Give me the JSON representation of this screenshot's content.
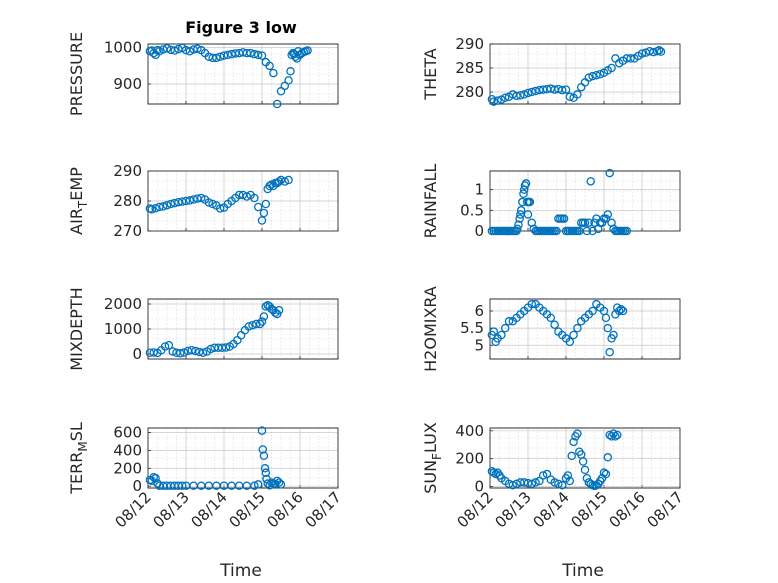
{
  "chart_data": [
    {
      "type": "scatter",
      "title": "Figure 3 low",
      "ylabel": "PRESSURE",
      "xlabel": "",
      "ylim": [
        845,
        1010
      ],
      "yticks": [
        900,
        1000
      ],
      "xlim": [
        0,
        5
      ],
      "xtick_labels": [
        "08/12",
        "08/13",
        "08/14",
        "08/15",
        "08/16",
        "08/17"
      ],
      "x": [
        0.05,
        0.1,
        0.15,
        0.2,
        0.25,
        0.3,
        0.4,
        0.5,
        0.6,
        0.7,
        0.8,
        0.9,
        1.0,
        1.1,
        1.2,
        1.3,
        1.4,
        1.5,
        1.6,
        1.7,
        1.8,
        1.9,
        2.0,
        2.1,
        2.2,
        2.3,
        2.4,
        2.5,
        2.6,
        2.7,
        2.8,
        2.9,
        3.0,
        3.1,
        3.2,
        3.3,
        3.4,
        3.5,
        3.6,
        3.7,
        3.75,
        3.78,
        3.82,
        3.85,
        3.88,
        3.92,
        3.95,
        4.0,
        4.05,
        4.1,
        4.15,
        4.2
      ],
      "y": [
        990,
        992,
        985,
        980,
        993,
        990,
        995,
        998,
        994,
        992,
        996,
        999,
        993,
        990,
        995,
        997,
        993,
        985,
        975,
        972,
        972,
        975,
        978,
        980,
        982,
        984,
        985,
        987,
        985,
        985,
        982,
        980,
        978,
        960,
        950,
        930,
        845,
        880,
        895,
        910,
        935,
        980,
        985,
        982,
        975,
        970,
        990,
        980,
        985,
        988,
        990,
        992
      ]
    },
    {
      "type": "scatter",
      "title": "",
      "ylabel": "THETA",
      "xlabel": "",
      "ylim": [
        277.5,
        290
      ],
      "yticks": [
        280,
        285,
        290
      ],
      "xlim": [
        0,
        5
      ],
      "xtick_labels": [
        "08/12",
        "08/13",
        "08/14",
        "08/15",
        "08/16",
        "08/17"
      ],
      "x": [
        0.05,
        0.1,
        0.2,
        0.3,
        0.4,
        0.5,
        0.6,
        0.7,
        0.8,
        0.9,
        1.0,
        1.1,
        1.2,
        1.3,
        1.4,
        1.5,
        1.6,
        1.7,
        1.8,
        1.9,
        2.0,
        2.1,
        2.2,
        2.3,
        2.4,
        2.5,
        2.6,
        2.7,
        2.8,
        2.9,
        3.0,
        3.1,
        3.2,
        3.3,
        3.4,
        3.5,
        3.6,
        3.7,
        3.8,
        3.9,
        4.0,
        4.1,
        4.2,
        4.3,
        4.4,
        4.45,
        4.5
      ],
      "y": [
        278.5,
        278,
        278.2,
        278.4,
        278.8,
        279,
        279.5,
        279.2,
        279.3,
        279.5,
        279.8,
        280,
        280.2,
        280.4,
        280.5,
        280.6,
        280.7,
        280.5,
        280.6,
        280.4,
        280.5,
        279,
        278.8,
        279.5,
        281,
        282,
        283,
        283.3,
        283.5,
        283.7,
        284,
        284.5,
        285,
        287,
        286,
        286.5,
        287,
        287,
        287,
        287.5,
        288,
        288.2,
        288.5,
        288.3,
        288.5,
        288.7,
        288.4
      ]
    },
    {
      "type": "scatter",
      "title": "",
      "ylabel": "AIR_TEMP",
      "xlabel": "",
      "ylim": [
        270,
        290
      ],
      "yticks": [
        270,
        280,
        290
      ],
      "xlim": [
        0,
        5
      ],
      "xtick_labels": [
        "08/12",
        "08/13",
        "08/14",
        "08/15",
        "08/16",
        "08/17"
      ],
      "x": [
        0.05,
        0.1,
        0.2,
        0.3,
        0.4,
        0.5,
        0.6,
        0.7,
        0.8,
        0.9,
        1.0,
        1.1,
        1.2,
        1.3,
        1.4,
        1.5,
        1.6,
        1.7,
        1.8,
        1.9,
        2.0,
        2.1,
        2.2,
        2.3,
        2.4,
        2.5,
        2.6,
        2.7,
        2.8,
        2.9,
        3.0,
        3.05,
        3.1,
        3.15,
        3.2,
        3.25,
        3.3,
        3.35,
        3.4,
        3.45,
        3.5,
        3.6,
        3.7
      ],
      "y": [
        277.5,
        277.2,
        277.6,
        278,
        278.2,
        278.6,
        279,
        279.3,
        279.6,
        279.8,
        280,
        280.2,
        280.5,
        280.8,
        281,
        280.5,
        279.5,
        279,
        278.5,
        277.5,
        277.8,
        279,
        280,
        281,
        282,
        282,
        281.5,
        282,
        281,
        278,
        273.5,
        276,
        279,
        284,
        285,
        285.5,
        285,
        286,
        286,
        286.5,
        287,
        286.5,
        287
      ]
    },
    {
      "type": "scatter",
      "title": "",
      "ylabel": "RAINFALL",
      "xlabel": "",
      "ylim": [
        0,
        1.45
      ],
      "yticks": [
        0,
        0.5,
        1
      ],
      "xlim": [
        0,
        5
      ],
      "xtick_labels": [
        "08/12",
        "08/13",
        "08/14",
        "08/15",
        "08/16",
        "08/17"
      ],
      "x": [
        0.05,
        0.1,
        0.15,
        0.2,
        0.25,
        0.3,
        0.35,
        0.4,
        0.45,
        0.5,
        0.55,
        0.6,
        0.65,
        0.7,
        0.72,
        0.75,
        0.78,
        0.8,
        0.82,
        0.85,
        0.88,
        0.9,
        0.92,
        0.95,
        0.98,
        1.0,
        1.02,
        1.05,
        1.1,
        1.15,
        1.2,
        1.25,
        1.3,
        1.35,
        1.4,
        1.45,
        1.5,
        1.55,
        1.6,
        1.65,
        1.7,
        1.75,
        1.8,
        1.85,
        1.9,
        1.95,
        2.0,
        2.05,
        2.1,
        2.15,
        2.2,
        2.25,
        2.3,
        2.35,
        2.4,
        2.45,
        2.5,
        2.55,
        2.6,
        2.65,
        2.7,
        2.75,
        2.8,
        2.85,
        2.9,
        2.95,
        3.0,
        3.05,
        3.1,
        3.15,
        3.2,
        3.25,
        3.3,
        3.35,
        3.4,
        3.45,
        3.5,
        3.55,
        3.6
      ],
      "y": [
        0,
        0,
        0,
        0,
        0,
        0,
        0,
        0,
        0,
        0,
        0,
        0,
        0,
        0,
        0.05,
        0.15,
        0.3,
        0.4,
        0.5,
        0.7,
        0.9,
        1.0,
        1.1,
        1.15,
        0.7,
        0.4,
        0.7,
        0.7,
        0.2,
        0.05,
        0,
        0,
        0,
        0,
        0,
        0,
        0,
        0,
        0,
        0,
        0,
        0,
        0.3,
        0.3,
        0.3,
        0.3,
        0,
        0,
        0,
        0,
        0,
        0,
        0,
        0,
        0.2,
        0.2,
        0.2,
        0,
        0.2,
        1.2,
        0,
        0.2,
        0.3,
        0.05,
        0.2,
        0.2,
        0.3,
        0.3,
        0.4,
        1.4,
        0.2,
        0.05,
        0,
        0,
        0,
        0,
        0,
        0,
        0
      ]
    },
    {
      "type": "scatter",
      "title": "",
      "ylabel": "MIXDEPTH",
      "xlabel": "",
      "ylim": [
        -200,
        2200
      ],
      "yticks": [
        0,
        1000,
        2000
      ],
      "xlim": [
        0,
        5
      ],
      "xtick_labels": [
        "08/12",
        "08/13",
        "08/14",
        "08/15",
        "08/16",
        "08/17"
      ],
      "x": [
        0.05,
        0.15,
        0.25,
        0.35,
        0.45,
        0.55,
        0.65,
        0.75,
        0.85,
        0.95,
        1.05,
        1.15,
        1.25,
        1.35,
        1.45,
        1.55,
        1.65,
        1.75,
        1.85,
        1.95,
        2.05,
        2.15,
        2.25,
        2.35,
        2.45,
        2.55,
        2.65,
        2.75,
        2.85,
        2.95,
        3.0,
        3.05,
        3.1,
        3.15,
        3.2,
        3.25,
        3.3,
        3.35,
        3.4,
        3.45
      ],
      "y": [
        50,
        60,
        40,
        150,
        300,
        350,
        100,
        50,
        30,
        60,
        120,
        150,
        120,
        80,
        50,
        100,
        200,
        250,
        250,
        250,
        260,
        300,
        400,
        550,
        750,
        950,
        1100,
        1150,
        1200,
        1200,
        1300,
        1500,
        1900,
        1950,
        1900,
        1800,
        1750,
        1650,
        1600,
        1750
      ]
    },
    {
      "type": "scatter",
      "title": "",
      "ylabel": "H2OMIXRA",
      "xlabel": "",
      "ylim": [
        4.6,
        6.35
      ],
      "yticks": [
        5,
        5.5,
        6
      ],
      "xlim": [
        0,
        5
      ],
      "xtick_labels": [
        "08/12",
        "08/13",
        "08/14",
        "08/15",
        "08/16",
        "08/17"
      ],
      "x": [
        0.05,
        0.1,
        0.15,
        0.2,
        0.3,
        0.4,
        0.5,
        0.6,
        0.7,
        0.8,
        0.9,
        1.0,
        1.1,
        1.2,
        1.3,
        1.4,
        1.5,
        1.6,
        1.7,
        1.8,
        1.9,
        2.0,
        2.1,
        2.2,
        2.3,
        2.4,
        2.5,
        2.6,
        2.7,
        2.8,
        2.9,
        3.0,
        3.05,
        3.1,
        3.15,
        3.2,
        3.25,
        3.3,
        3.35,
        3.4,
        3.45,
        3.5
      ],
      "y": [
        5.3,
        5.4,
        5.1,
        5.2,
        5.3,
        5.5,
        5.7,
        5.7,
        5.8,
        5.9,
        6.0,
        6.1,
        6.2,
        6.2,
        6.1,
        6.0,
        5.9,
        5.8,
        5.6,
        5.4,
        5.3,
        5.2,
        5.1,
        5.3,
        5.5,
        5.7,
        5.8,
        5.9,
        6.0,
        6.2,
        6.1,
        6.0,
        5.8,
        5.5,
        4.8,
        5.2,
        5.3,
        5.9,
        6.1,
        6.0,
        6.05,
        6.0
      ]
    },
    {
      "type": "scatter",
      "title": "",
      "ylabel": "TERR_MSL",
      "xlabel": "Time",
      "ylim": [
        -20,
        650
      ],
      "yticks": [
        0,
        200,
        400,
        600
      ],
      "xlim": [
        0,
        5
      ],
      "xtick_labels": [
        "08/12",
        "08/13",
        "08/14",
        "08/15",
        "08/16",
        "08/17"
      ],
      "x": [
        0.05,
        0.1,
        0.15,
        0.2,
        0.25,
        0.3,
        0.4,
        0.5,
        0.6,
        0.7,
        0.8,
        0.9,
        1.0,
        1.2,
        1.4,
        1.6,
        1.8,
        2.0,
        2.2,
        2.4,
        2.6,
        2.8,
        2.9,
        3.0,
        3.02,
        3.05,
        3.08,
        3.1,
        3.12,
        3.15,
        3.2,
        3.25,
        3.3,
        3.35,
        3.4,
        3.45,
        3.5
      ],
      "y": [
        70,
        60,
        100,
        90,
        30,
        5,
        5,
        5,
        5,
        5,
        5,
        5,
        5,
        5,
        5,
        5,
        5,
        5,
        5,
        5,
        5,
        5,
        20,
        620,
        410,
        340,
        200,
        150,
        80,
        30,
        10,
        40,
        30,
        25,
        60,
        40,
        20
      ]
    },
    {
      "type": "scatter",
      "title": "",
      "ylabel": "SUN_FLUX",
      "xlabel": "Time",
      "ylim": [
        -10,
        420
      ],
      "yticks": [
        0,
        200,
        400
      ],
      "xlim": [
        0,
        5
      ],
      "xtick_labels": [
        "08/12",
        "08/13",
        "08/14",
        "08/15",
        "08/16",
        "08/17"
      ],
      "x": [
        0.05,
        0.1,
        0.15,
        0.2,
        0.25,
        0.3,
        0.4,
        0.5,
        0.6,
        0.7,
        0.8,
        0.9,
        1.0,
        1.1,
        1.2,
        1.3,
        1.4,
        1.5,
        1.6,
        1.7,
        1.8,
        1.9,
        2.0,
        2.05,
        2.1,
        2.15,
        2.2,
        2.25,
        2.3,
        2.35,
        2.4,
        2.45,
        2.5,
        2.55,
        2.6,
        2.65,
        2.7,
        2.75,
        2.8,
        2.85,
        2.9,
        2.95,
        3.0,
        3.05,
        3.1,
        3.15,
        3.2,
        3.25,
        3.3,
        3.35
      ],
      "y": [
        110,
        100,
        90,
        100,
        80,
        60,
        40,
        20,
        10,
        20,
        30,
        30,
        25,
        20,
        30,
        40,
        80,
        90,
        50,
        30,
        20,
        10,
        60,
        80,
        40,
        220,
        320,
        360,
        380,
        250,
        230,
        180,
        120,
        60,
        30,
        20,
        10,
        5,
        10,
        20,
        40,
        60,
        100,
        90,
        210,
        370,
        360,
        380,
        360,
        370
      ]
    }
  ]
}
